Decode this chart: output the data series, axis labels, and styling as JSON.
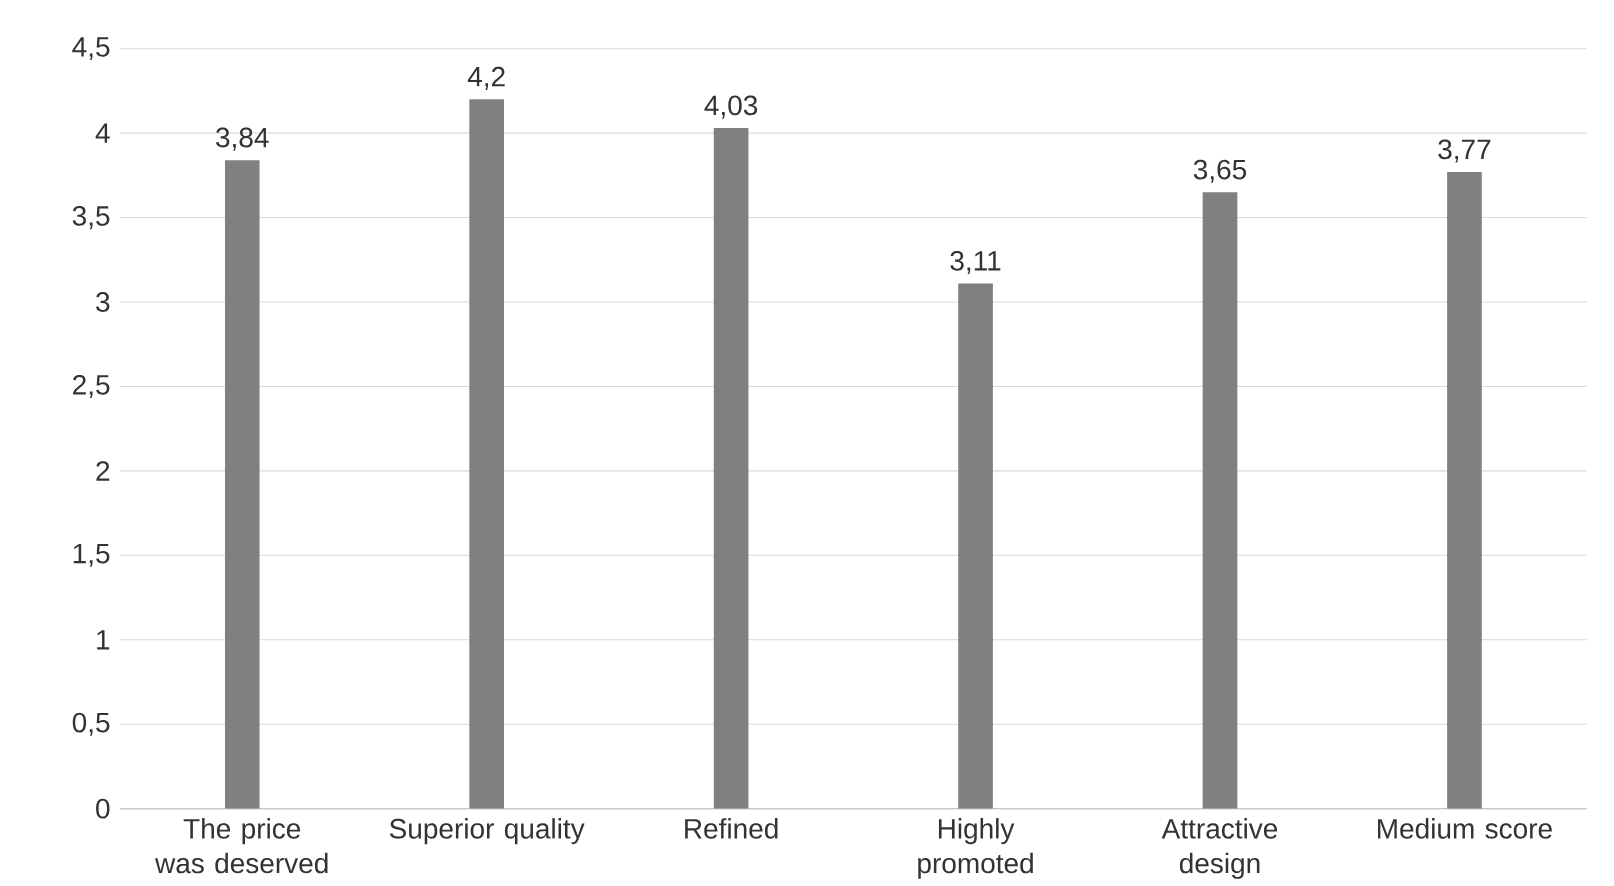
{
  "chart_data": {
    "type": "bar",
    "categories": [
      "The price was deserved",
      "Superior quality",
      "Refined",
      "Highly promoted",
      "Attractive design",
      "Medium score"
    ],
    "values": [
      3.84,
      4.2,
      4.03,
      3.11,
      3.65,
      3.77
    ],
    "value_labels": [
      "3,84",
      "4,2",
      "4,03",
      "3,11",
      "3,65",
      "3,77"
    ],
    "color": "#808080",
    "ylim": [
      0,
      4.5
    ],
    "yticks": [
      0,
      {
        "value": 0.5,
        "label": "0,5"
      },
      1,
      {
        "value": 1.5,
        "label": "1,5"
      },
      2,
      {
        "value": 2.5,
        "label": "2,5"
      },
      3,
      {
        "value": 3.5,
        "label": "3,5"
      },
      4,
      {
        "value": 4.5,
        "label": "4,5"
      }
    ],
    "grid": "y"
  }
}
